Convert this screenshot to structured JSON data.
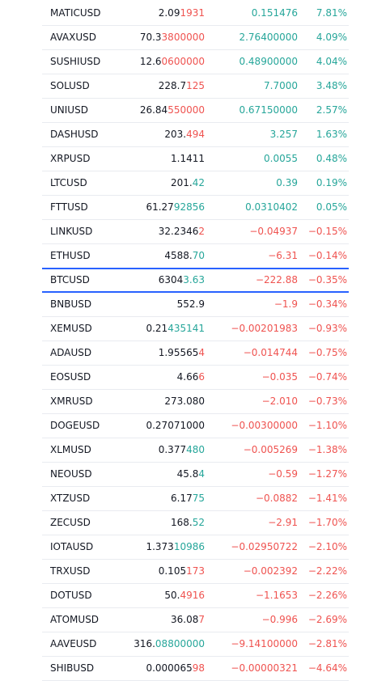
{
  "colors": {
    "up": "#26a69a",
    "down": "#ef5350",
    "selected_border": "#2962ff",
    "text": "#131722"
  },
  "watchlist": [
    {
      "symbol": "MATICUSD",
      "last_base": "2.09",
      "last_tick": "1931",
      "tick_dir": "down",
      "change": "0.151476",
      "change_pct": "7.81%",
      "dir": "up"
    },
    {
      "symbol": "AVAXUSD",
      "last_base": "70.3",
      "last_tick": "3800000",
      "tick_dir": "down",
      "change": "2.76400000",
      "change_pct": "4.09%",
      "dir": "up"
    },
    {
      "symbol": "SUSHIUSD",
      "last_base": "12.6",
      "last_tick": "0600000",
      "tick_dir": "down",
      "change": "0.48900000",
      "change_pct": "4.04%",
      "dir": "up"
    },
    {
      "symbol": "SOLUSD",
      "last_base": "228.7",
      "last_tick": "125",
      "tick_dir": "down",
      "change": "7.7000",
      "change_pct": "3.48%",
      "dir": "up"
    },
    {
      "symbol": "UNIUSD",
      "last_base": "26.84",
      "last_tick": "550000",
      "tick_dir": "down",
      "change": "0.67150000",
      "change_pct": "2.57%",
      "dir": "up"
    },
    {
      "symbol": "DASHUSD",
      "last_base": "203.",
      "last_tick": "494",
      "tick_dir": "down",
      "change": "3.257",
      "change_pct": "1.63%",
      "dir": "up"
    },
    {
      "symbol": "XRPUSD",
      "last_base": "1.1411",
      "last_tick": "",
      "tick_dir": "none",
      "change": "0.0055",
      "change_pct": "0.48%",
      "dir": "up"
    },
    {
      "symbol": "LTCUSD",
      "last_base": "201.",
      "last_tick": "42",
      "tick_dir": "up",
      "change": "0.39",
      "change_pct": "0.19%",
      "dir": "up"
    },
    {
      "symbol": "FTTUSD",
      "last_base": "61.27",
      "last_tick": "92856",
      "tick_dir": "up",
      "change": "0.0310402",
      "change_pct": "0.05%",
      "dir": "up"
    },
    {
      "symbol": "LINKUSD",
      "last_base": "32.2346",
      "last_tick": "2",
      "tick_dir": "down",
      "change": "−0.04937",
      "change_pct": "−0.15%",
      "dir": "down"
    },
    {
      "symbol": "ETHUSD",
      "last_base": "4588.",
      "last_tick": "70",
      "tick_dir": "up",
      "change": "−6.31",
      "change_pct": "−0.14%",
      "dir": "down"
    },
    {
      "symbol": "BTCUSD",
      "last_base": "6304",
      "last_tick": "3.63",
      "tick_dir": "up",
      "change": "−222.88",
      "change_pct": "−0.35%",
      "dir": "down",
      "selected": true
    },
    {
      "symbol": "BNBUSD",
      "last_base": "552.9",
      "last_tick": "",
      "tick_dir": "none",
      "change": "−1.9",
      "change_pct": "−0.34%",
      "dir": "down"
    },
    {
      "symbol": "XEMUSD",
      "last_base": "0.21",
      "last_tick": "435141",
      "tick_dir": "up",
      "change": "−0.00201983",
      "change_pct": "−0.93%",
      "dir": "down"
    },
    {
      "symbol": "ADAUSD",
      "last_base": "1.95565",
      "last_tick": "4",
      "tick_dir": "down",
      "change": "−0.014744",
      "change_pct": "−0.75%",
      "dir": "down"
    },
    {
      "symbol": "EOSUSD",
      "last_base": "4.66",
      "last_tick": "6",
      "tick_dir": "down",
      "change": "−0.035",
      "change_pct": "−0.74%",
      "dir": "down"
    },
    {
      "symbol": "XMRUSD",
      "last_base": "273.080",
      "last_tick": "",
      "tick_dir": "none",
      "change": "−2.010",
      "change_pct": "−0.73%",
      "dir": "down"
    },
    {
      "symbol": "DOGEUSD",
      "last_base": "0.27071000",
      "last_tick": "",
      "tick_dir": "none",
      "change": "−0.00300000",
      "change_pct": "−1.10%",
      "dir": "down"
    },
    {
      "symbol": "XLMUSD",
      "last_base": "0.377",
      "last_tick": "480",
      "tick_dir": "up",
      "change": "−0.005269",
      "change_pct": "−1.38%",
      "dir": "down"
    },
    {
      "symbol": "NEOUSD",
      "last_base": "45.8",
      "last_tick": "4",
      "tick_dir": "up",
      "change": "−0.59",
      "change_pct": "−1.27%",
      "dir": "down"
    },
    {
      "symbol": "XTZUSD",
      "last_base": "6.17",
      "last_tick": "75",
      "tick_dir": "up",
      "change": "−0.0882",
      "change_pct": "−1.41%",
      "dir": "down"
    },
    {
      "symbol": "ZECUSD",
      "last_base": "168.",
      "last_tick": "52",
      "tick_dir": "up",
      "change": "−2.91",
      "change_pct": "−1.70%",
      "dir": "down"
    },
    {
      "symbol": "IOTAUSD",
      "last_base": "1.373",
      "last_tick": "10986",
      "tick_dir": "up",
      "change": "−0.02950722",
      "change_pct": "−2.10%",
      "dir": "down"
    },
    {
      "symbol": "TRXUSD",
      "last_base": "0.105",
      "last_tick": "173",
      "tick_dir": "down",
      "change": "−0.002392",
      "change_pct": "−2.22%",
      "dir": "down"
    },
    {
      "symbol": "DOTUSD",
      "last_base": "50.",
      "last_tick": "4916",
      "tick_dir": "down",
      "change": "−1.1653",
      "change_pct": "−2.26%",
      "dir": "down"
    },
    {
      "symbol": "ATOMUSD",
      "last_base": "36.08",
      "last_tick": "7",
      "tick_dir": "down",
      "change": "−0.996",
      "change_pct": "−2.69%",
      "dir": "down"
    },
    {
      "symbol": "AAVEUSD",
      "last_base": "316.",
      "last_tick": "08800000",
      "tick_dir": "up",
      "change": "−9.14100000",
      "change_pct": "−2.81%",
      "dir": "down"
    },
    {
      "symbol": "SHIBUSD",
      "last_base": "0.000065",
      "last_tick": "98",
      "tick_dir": "down",
      "change": "−0.00000321",
      "change_pct": "−4.64%",
      "dir": "down"
    }
  ]
}
